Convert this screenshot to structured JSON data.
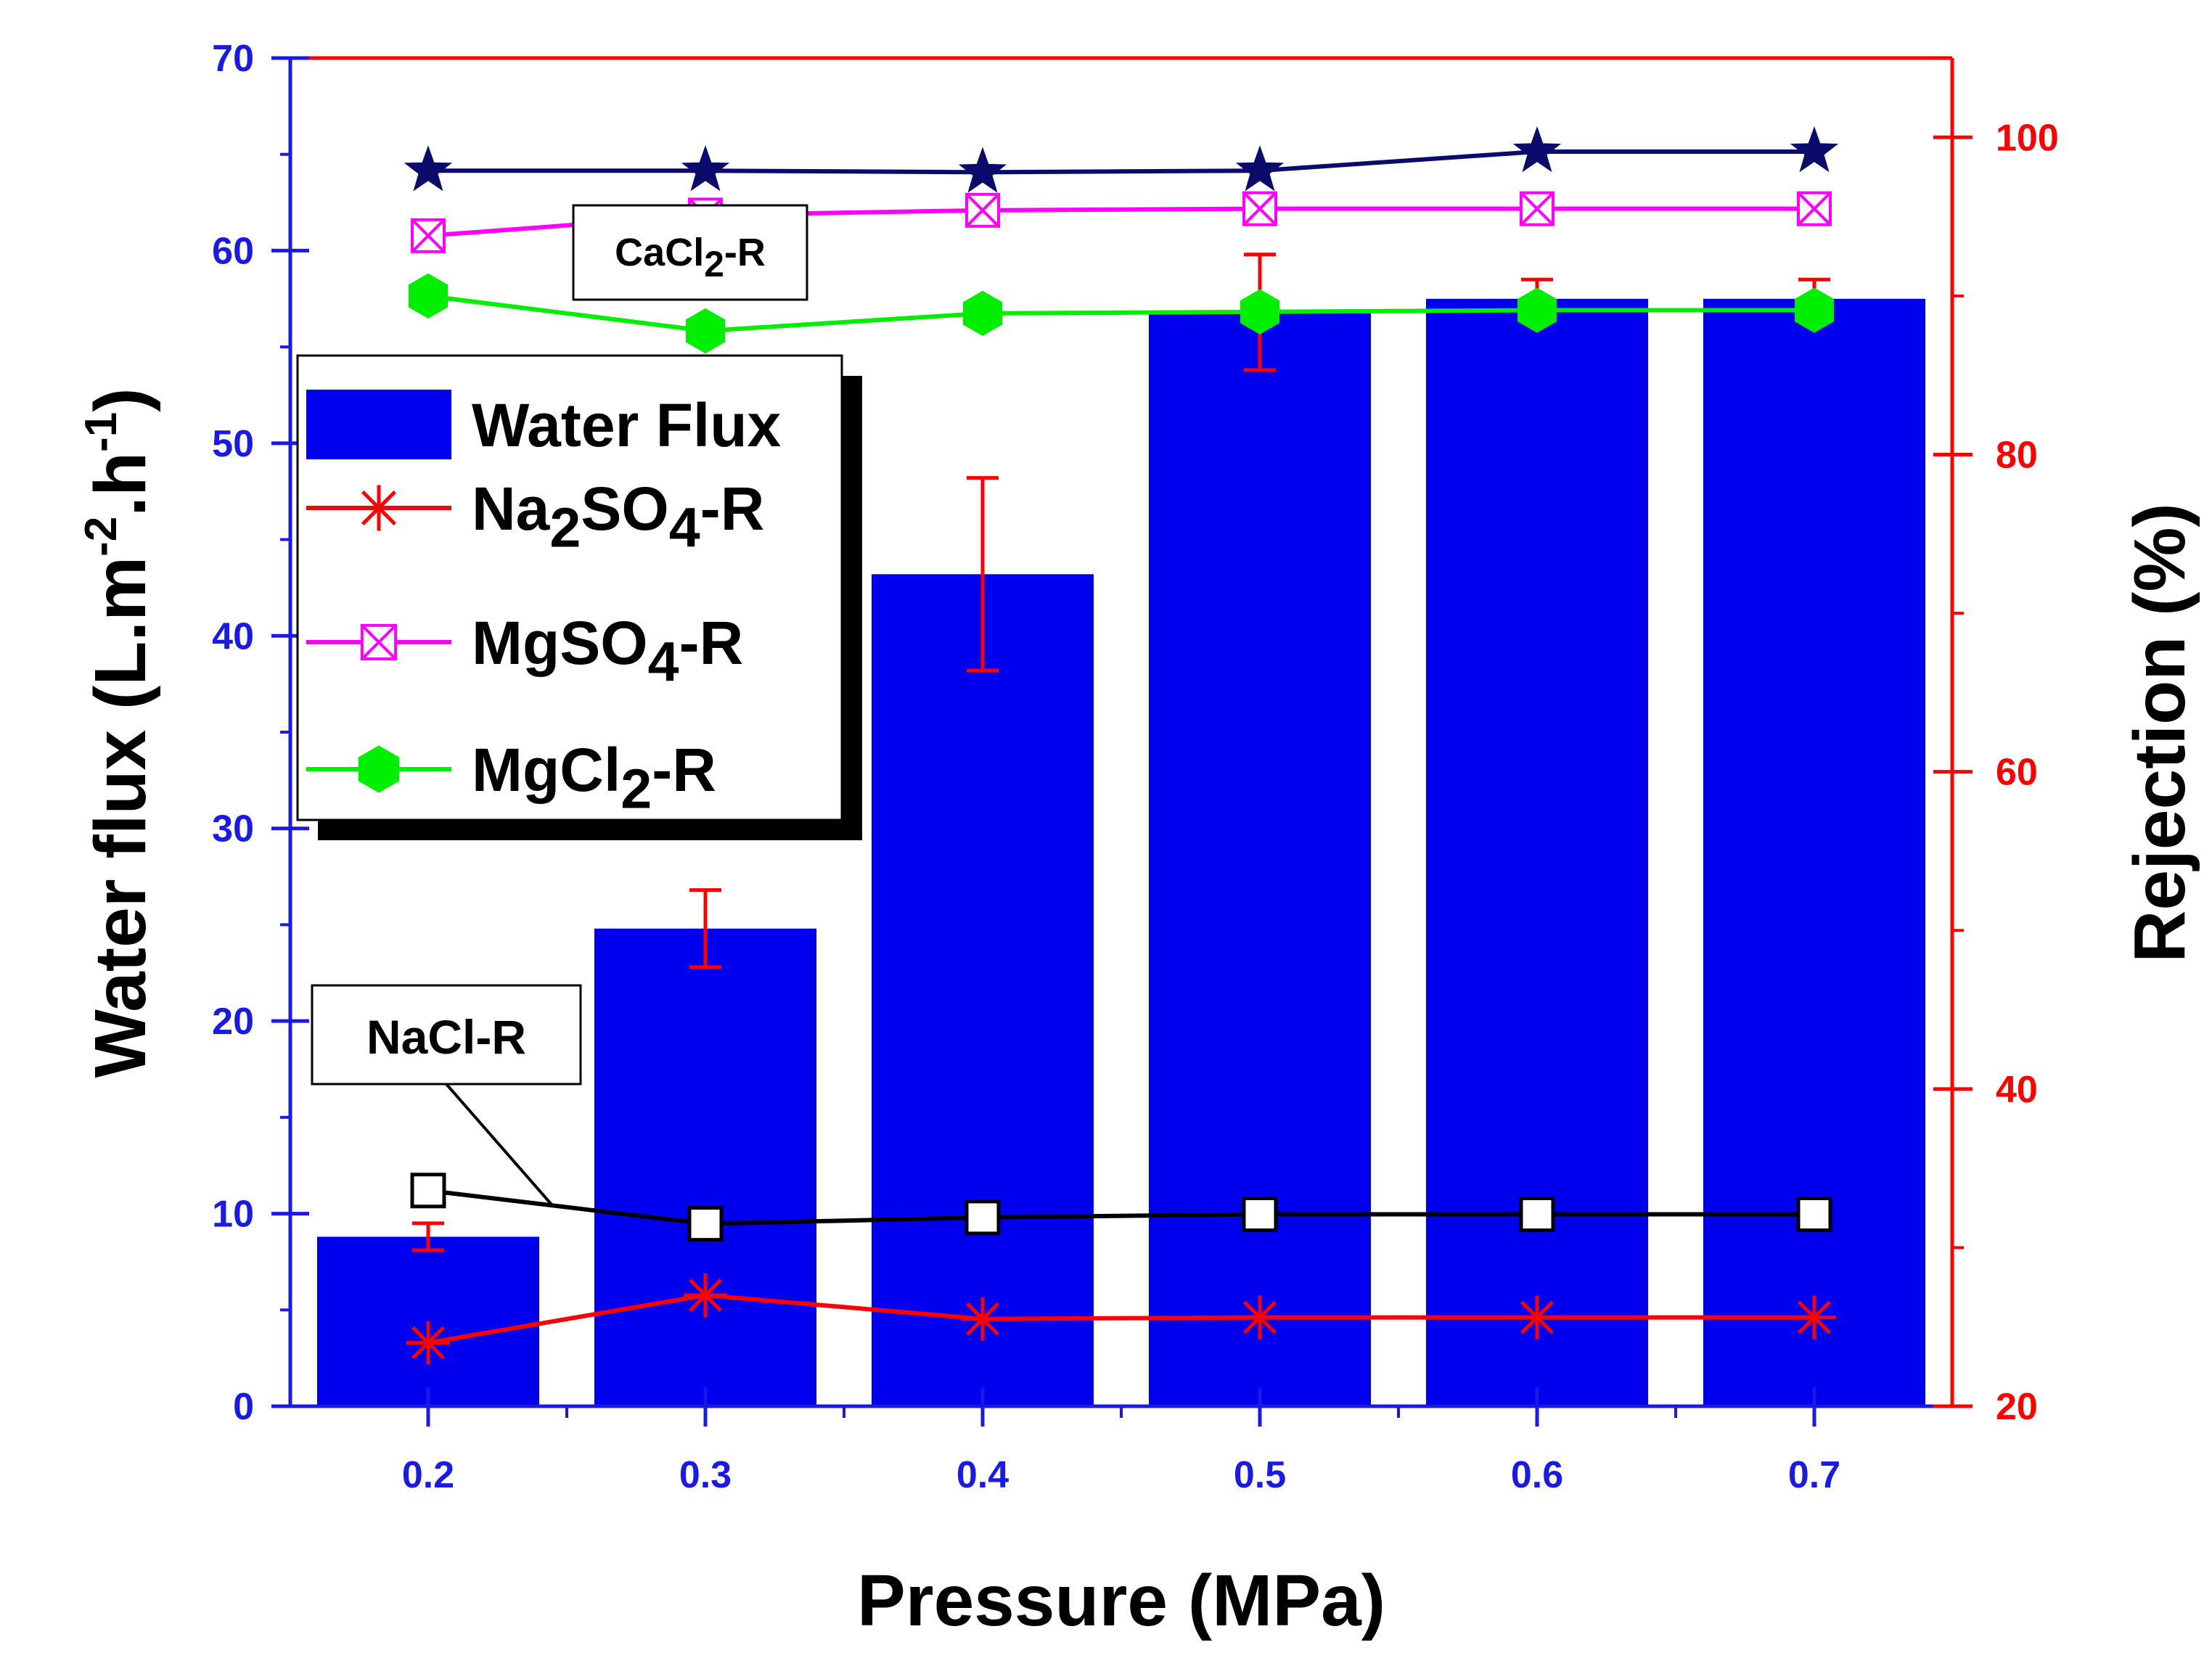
{
  "chart_data": {
    "type": "bar",
    "title": "",
    "xlabel": "Pressure (MPa)",
    "ylabel": "Water flux (L.m-2.h-1)",
    "ylabel_parts": [
      "Water flux (L.m",
      "-2",
      ".h",
      "-1",
      ")"
    ],
    "ylabel_right": "Rejection (%)",
    "categories": [
      "0.2",
      "0.3",
      "0.4",
      "0.5",
      "0.6",
      "0.7"
    ],
    "ylim": [
      0,
      70
    ],
    "ylim_right": [
      20,
      105
    ],
    "yticks_left": [
      "0",
      "10",
      "20",
      "30",
      "40",
      "50",
      "60",
      "70"
    ],
    "yticks_right": [
      "20",
      "40",
      "60",
      "80",
      "100"
    ],
    "bars": {
      "name": "Water Flux",
      "color": "#0000ee",
      "values": [
        8.8,
        24.8,
        43.2,
        56.8,
        57.5,
        57.5
      ],
      "errors": [
        0.7,
        2.0,
        5.0,
        3.0,
        1.0,
        1.0
      ]
    },
    "series": [
      {
        "name": "CaCl2-R",
        "axis": "right",
        "marker": "star",
        "color": "#0b0b6b",
        "values": [
          97.9,
          97.9,
          97.8,
          97.9,
          99.1,
          99.1
        ]
      },
      {
        "name": "MgSO4-R",
        "axis": "right",
        "marker": "square-x",
        "color": "#ff00ff",
        "values": [
          93.8,
          95.1,
          95.4,
          95.5,
          95.5,
          95.5
        ]
      },
      {
        "name": "MgCl2-R",
        "axis": "right",
        "marker": "hexagon",
        "color": "#00ee00",
        "values": [
          90.0,
          87.8,
          88.9,
          89.0,
          89.1,
          89.1
        ]
      },
      {
        "name": "NaCl-R",
        "axis": "right",
        "marker": "open-square",
        "color": "#000000",
        "values": [
          33.6,
          31.5,
          31.9,
          32.1,
          32.1,
          32.1
        ]
      },
      {
        "name": "Na2SO4-R",
        "axis": "right",
        "marker": "asterisk",
        "color": "#ff0000",
        "values": [
          24.0,
          27.0,
          25.5,
          25.6,
          25.6,
          25.6
        ]
      }
    ],
    "legend": {
      "position": "upper-left",
      "entries": [
        {
          "label": "Water Flux",
          "parts": [
            [
              "Water Flux",
              ""
            ]
          ]
        },
        {
          "label": "Na2SO4-R",
          "parts": [
            [
              "Na",
              ""
            ],
            [
              "2",
              "sub"
            ],
            [
              "SO",
              ""
            ],
            [
              "4",
              "sub"
            ],
            [
              "-R",
              ""
            ]
          ]
        },
        {
          "label": "MgSO4-R",
          "parts": [
            [
              "MgSO",
              ""
            ],
            [
              "4",
              "sub"
            ],
            [
              "-R",
              ""
            ]
          ]
        },
        {
          "label": "MgCl2-R",
          "parts": [
            [
              "MgCl",
              ""
            ],
            [
              "2",
              "sub"
            ],
            [
              "-R",
              ""
            ]
          ]
        }
      ]
    },
    "annotations": [
      {
        "label": "CaCl2-R",
        "parts": [
          [
            "CaCl",
            ""
          ],
          [
            "2",
            "sub"
          ],
          [
            "-R",
            ""
          ]
        ]
      },
      {
        "label": "NaCl-R",
        "parts": [
          [
            "NaCl-R",
            ""
          ]
        ]
      }
    ],
    "colors": {
      "left_axis": "#1a1ae6",
      "right_axis": "#ff0000",
      "error_bar": "#ff0000"
    }
  }
}
